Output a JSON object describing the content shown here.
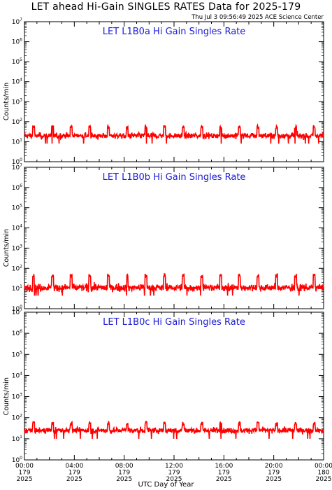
{
  "title": "LET ahead Hi-Gain SINGLES RATES Data for 2025-179",
  "timestamp": "Thu Jul  3 09:56:49 2025 ACE Science Center",
  "xaxis_label": "UTC Day of Year",
  "chart_data": {
    "type": "line",
    "yscale": "log",
    "ylim": [
      1,
      10000000
    ],
    "y_ticks": [
      "10^0",
      "10^1",
      "10^2",
      "10^3",
      "10^4",
      "10^5",
      "10^6",
      "10^7"
    ],
    "x_ticks": [
      {
        "time": "00:00",
        "doy": "179",
        "year": "2025"
      },
      {
        "time": "04:00",
        "doy": "179",
        "year": "2025"
      },
      {
        "time": "08:00",
        "doy": "179",
        "year": "2025"
      },
      {
        "time": "12:00",
        "doy": "179",
        "year": "2025"
      },
      {
        "time": "16:00",
        "doy": "179",
        "year": "2025"
      },
      {
        "time": "20:00",
        "doy": "179",
        "year": "2025"
      },
      {
        "time": "00:00",
        "doy": "180",
        "year": "2025"
      }
    ],
    "xlim_hours": [
      0,
      24
    ],
    "panels": [
      {
        "title": "LET L1B0a Hi Gain Singles Rate",
        "ylabel": "Counts/min",
        "color": "#ff0000",
        "baseline": 20,
        "noise": 0.28,
        "spike_peak": 55,
        "spike_period_hours": 1.5,
        "spike_first_hour": 0.7
      },
      {
        "title": "LET L1B0b Hi Gain Singles Rate",
        "ylabel": "Counts/min",
        "color": "#ff0000",
        "baseline": 11,
        "noise": 0.35,
        "spike_peak": 45,
        "spike_period_hours": 1.5,
        "spike_first_hour": 0.7
      },
      {
        "title": "LET L1B0c Hi Gain Singles Rate",
        "ylabel": "Counts/min",
        "color": "#ff0000",
        "baseline": 25,
        "noise": 0.25,
        "spike_peak": 55,
        "spike_period_hours": 1.5,
        "spike_first_hour": 0.7
      }
    ]
  }
}
